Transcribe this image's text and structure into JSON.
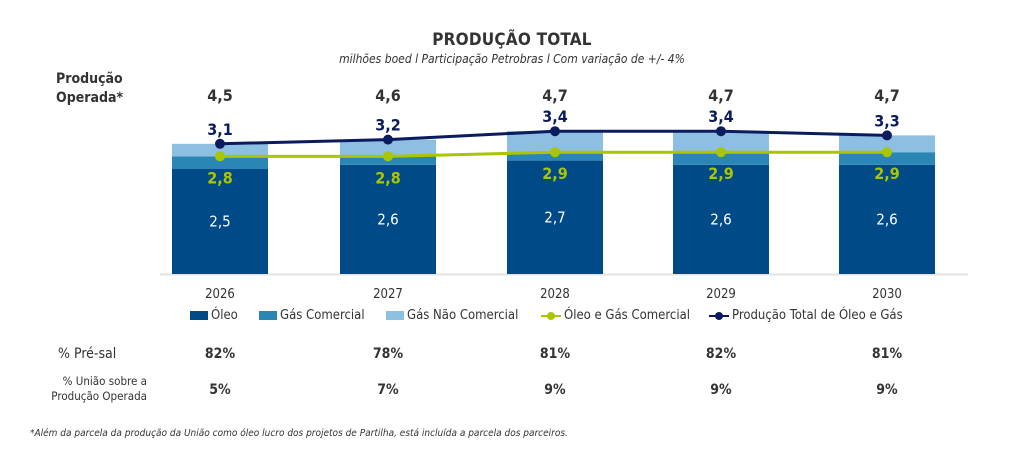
{
  "colors": {
    "oleo": "#004a87",
    "gas_comercial": "#2a86b5",
    "gas_nao_comercial": "#8dbfe2",
    "oleo_gas_comercial": "#a9c600",
    "producao_total": "#0b1c5e",
    "text": "#333333"
  },
  "operated_label": [
    "Produção",
    "Operada*"
  ],
  "table": {
    "presal_label": "% Pré-sal",
    "presal": [
      "82%",
      "78%",
      "81%",
      "82%",
      "81%"
    ],
    "uniao_label": [
      "% União sobre a",
      "Produção Operada"
    ],
    "uniao": [
      "5%",
      "7%",
      "9%",
      "9%",
      "9%"
    ]
  },
  "footnote": "*Além da parcela da produção da União como óleo lucro dos projetos de Partilha, está incluída a parcela dos parceiros.",
  "chart_data": {
    "type": "bar",
    "title": "PRODUÇÃO TOTAL",
    "subtitle": "milhões boed l Participação Petrobras l Com variação de +/- 4%",
    "xlabel": "",
    "ylabel": "",
    "categories": [
      "2026",
      "2027",
      "2028",
      "2029",
      "2030"
    ],
    "stacked": true,
    "series": [
      {
        "name": "Óleo",
        "kind": "bar",
        "values": [
          2.5,
          2.6,
          2.7,
          2.6,
          2.6
        ],
        "labels": [
          "2,5",
          "2,6",
          "2,7",
          "2,6",
          "2,6"
        ]
      },
      {
        "name": "Gás Comercial",
        "kind": "bar",
        "values": [
          0.3,
          0.2,
          0.2,
          0.3,
          0.3
        ]
      },
      {
        "name": "Gás Não Comercial",
        "kind": "bar",
        "values": [
          0.3,
          0.4,
          0.5,
          0.5,
          0.4
        ]
      },
      {
        "name": "Óleo e Gás Comercial",
        "kind": "line",
        "values": [
          2.8,
          2.8,
          2.9,
          2.9,
          2.9
        ],
        "labels": [
          "2,8",
          "2,8",
          "2,9",
          "2,9",
          "2,9"
        ]
      },
      {
        "name": "Produção Total de Óleo e Gás",
        "kind": "line",
        "values": [
          3.1,
          3.2,
          3.4,
          3.4,
          3.3
        ],
        "labels": [
          "3,1",
          "3,2",
          "3,4",
          "3,4",
          "3,3"
        ]
      }
    ],
    "operated_production": {
      "label": "Produção Operada*",
      "values": [
        4.5,
        4.6,
        4.7,
        4.7,
        4.7
      ],
      "labels": [
        "4,5",
        "4,6",
        "4,7",
        "4,7",
        "4,7"
      ]
    },
    "ylim": [
      0,
      3.6
    ],
    "grid": false,
    "legend_position": "bottom"
  }
}
